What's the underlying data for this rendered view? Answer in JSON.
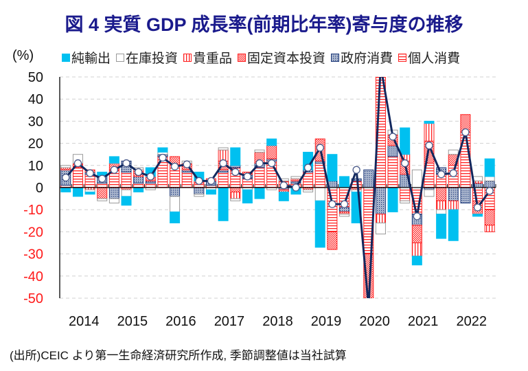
{
  "title": "図 4  実質 GDP 成長率(前期比年率)寄与度の推移",
  "source_note": "(出所)CEIC より第一生命経済研究所作成, 季節調整値は当社試算",
  "chart_data": {
    "type": "bar",
    "stacked": true,
    "title": "図 4  実質 GDP 成長率(前期比年率)寄与度の推移",
    "ylabel": "(%)",
    "ylim": [
      -50,
      50
    ],
    "yticks": [
      50,
      40,
      30,
      20,
      10,
      0,
      -10,
      -20,
      -30,
      -40,
      -50
    ],
    "grid": true,
    "legend_position": "top",
    "xtick_labels": [
      "2014",
      "2015",
      "2016",
      "2017",
      "2018",
      "2019",
      "2020",
      "2021",
      "2022"
    ],
    "categories": [
      "2014Q1",
      "2014Q2",
      "2014Q3",
      "2014Q4",
      "2015Q1",
      "2015Q2",
      "2015Q3",
      "2015Q4",
      "2016Q1",
      "2016Q2",
      "2016Q3",
      "2016Q4",
      "2017Q1",
      "2017Q2",
      "2017Q3",
      "2017Q4",
      "2018Q1",
      "2018Q2",
      "2018Q3",
      "2018Q4",
      "2019Q1",
      "2019Q2",
      "2019Q3",
      "2019Q4",
      "2020Q1",
      "2020Q2",
      "2020Q3",
      "2020Q4",
      "2021Q1",
      "2021Q2",
      "2021Q3",
      "2021Q4",
      "2022Q1",
      "2022Q2",
      "2022Q3",
      "2022Q4"
    ],
    "series": [
      {
        "name": "純輸出",
        "type": "bar",
        "color": "#00c0f0",
        "values": [
          -2,
          -4,
          -1,
          2,
          3,
          -4,
          -2,
          4,
          2,
          -5,
          0,
          4,
          -2,
          -15,
          8,
          -6,
          -5,
          3,
          -4,
          -3,
          8,
          -21,
          12,
          5,
          -14,
          -8,
          8,
          -11,
          12,
          -4,
          1,
          -11,
          -14,
          0,
          -1,
          8
        ]
      },
      {
        "name": "在庫投資",
        "type": "bar",
        "color": "#ffffff",
        "values": [
          1,
          4,
          -1,
          -1,
          -2,
          -3,
          1,
          -1,
          1,
          -7,
          1,
          -1,
          -1,
          1,
          -1,
          -1,
          1,
          -1,
          1,
          1,
          -1,
          -6,
          0,
          -1,
          -1,
          -5,
          -5,
          2,
          -1,
          8,
          -3,
          -2,
          2,
          0,
          2,
          2
        ]
      },
      {
        "name": "貴重品",
        "type": "bar",
        "color": "#ff2020",
        "values": [
          0,
          0,
          -1,
          0,
          0,
          0,
          0,
          0,
          0,
          0,
          0,
          0,
          1,
          5,
          -3,
          0,
          0,
          0,
          0,
          0,
          0,
          0,
          0,
          0,
          0,
          -4,
          -4,
          0,
          3,
          -6,
          8,
          -4,
          -4,
          0,
          1,
          -3
        ]
      },
      {
        "name": "固定資本投資",
        "type": "bar",
        "color": "#ff2020",
        "values": [
          1,
          2,
          1,
          -5,
          3,
          -1,
          3,
          2,
          0,
          4,
          3,
          1,
          0,
          4,
          -2,
          1,
          5,
          6,
          -1,
          1,
          -1,
          10,
          -8,
          -1,
          -1,
          -20,
          5,
          5,
          6,
          -8,
          10,
          -6,
          5,
          8,
          -6,
          -7
        ]
      },
      {
        "name": "政府消費",
        "type": "bar",
        "color": "#1e3a7a",
        "values": [
          7,
          0,
          1,
          3,
          -5,
          5,
          3,
          1,
          1,
          -4,
          1,
          -3,
          2,
          1,
          1,
          2,
          2,
          1,
          -1,
          1,
          1,
          1,
          3,
          -2,
          1,
          8,
          -12,
          5,
          6,
          -5,
          -1,
          3,
          -6,
          -7,
          2,
          3
        ]
      },
      {
        "name": "個人消費",
        "type": "bar",
        "color": "#ff2020",
        "values": [
          1,
          9,
          6,
          2,
          8,
          7,
          2,
          2,
          14,
          10,
          7,
          2,
          1,
          7,
          9,
          4,
          9,
          12,
          3,
          2,
          7,
          11,
          -20,
          -9,
          3,
          -30,
          80,
          14,
          -6,
          -12,
          11,
          6,
          10,
          25,
          -6,
          -10
        ]
      },
      {
        "name": "GDP",
        "type": "line",
        "color": "#12285e",
        "values": [
          4.5,
          11,
          6.5,
          4,
          8,
          11,
          7,
          5,
          13.5,
          9.5,
          10.5,
          3,
          3,
          11,
          7,
          5,
          11,
          11,
          1,
          0,
          9,
          18,
          -7.5,
          -7.5,
          8,
          -54,
          55,
          23,
          11,
          -13,
          19,
          6,
          6.5,
          25,
          -9,
          -1.5
        ]
      }
    ]
  },
  "legend": [
    {
      "label": "純輸出",
      "pattern": "solid-cyan"
    },
    {
      "label": "在庫投資",
      "pattern": "hollow-gray"
    },
    {
      "label": "貴重品",
      "pattern": "vertical-red"
    },
    {
      "label": "固定資本投資",
      "pattern": "checker-red"
    },
    {
      "label": "政府消費",
      "pattern": "dots-navy"
    },
    {
      "label": "個人消費",
      "pattern": "horizontal-red"
    }
  ]
}
